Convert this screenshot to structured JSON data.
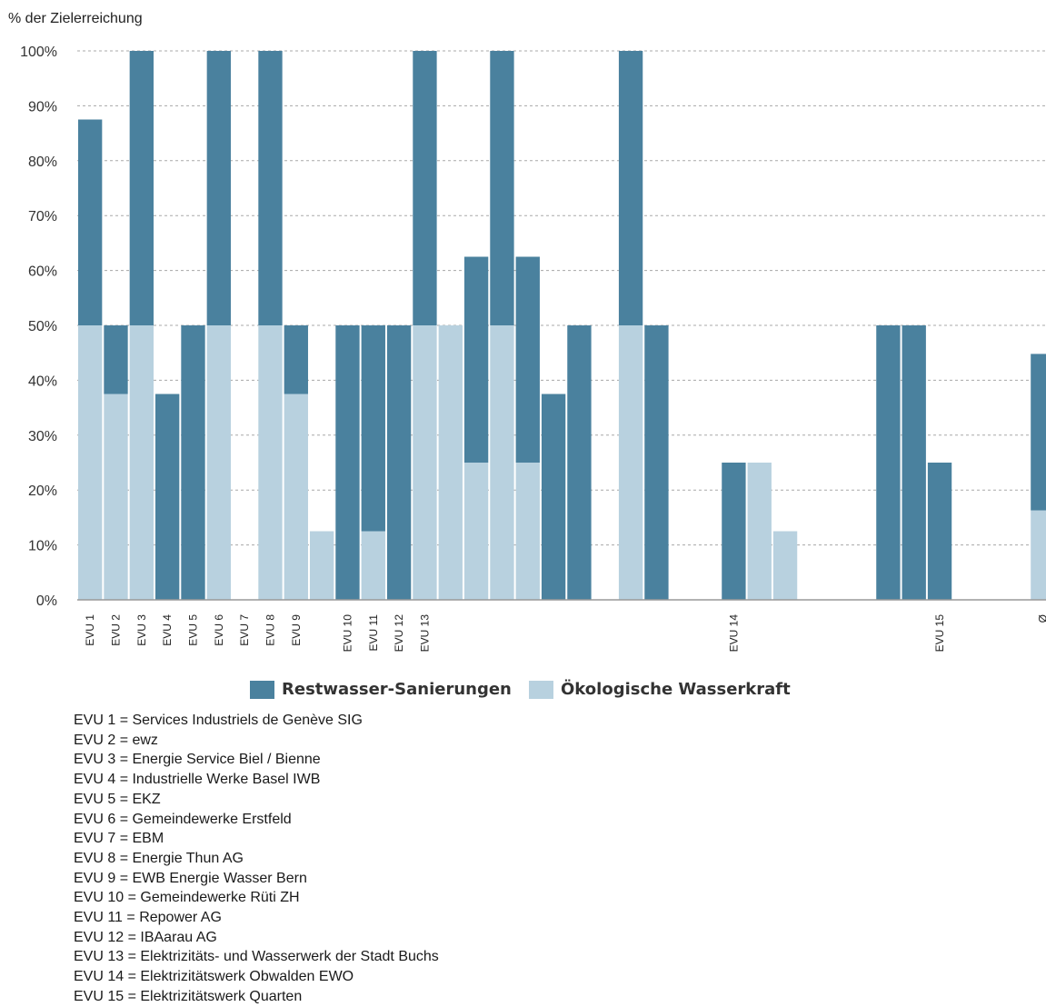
{
  "chart_data": {
    "type": "bar",
    "stacked": true,
    "ylabel": "% der Zielerreichung",
    "ylim": [
      0,
      100
    ],
    "yticks": [
      "0%",
      "10%",
      "20%",
      "30%",
      "40%",
      "50%",
      "60%",
      "70%",
      "80%",
      "90%",
      "100%"
    ],
    "grid": true,
    "legend_position": "bottom",
    "categories": [
      "EVU 1",
      "EVU 2",
      "EVU 3",
      "EVU 4",
      "EVU 5",
      "EVU 6",
      "EVU 7",
      "EVU 8",
      "EVU 9",
      "",
      "EVU 10",
      "EVU 11",
      "EVU 12",
      "EVU 13",
      "",
      "",
      "",
      "",
      "",
      "",
      "",
      "",
      "",
      "",
      "",
      "EVU 14",
      "",
      "",
      "",
      "",
      "",
      "",
      "",
      "EVU 15",
      "",
      "",
      "",
      "Ø"
    ],
    "series": [
      {
        "name": "Ökologische Wasserkraft",
        "color": "#b8d1df",
        "values": [
          50,
          37.5,
          50,
          0,
          0,
          50,
          0,
          50,
          37.5,
          12.5,
          0,
          12.5,
          0,
          50,
          50,
          25,
          50,
          25,
          0,
          0,
          0,
          50,
          0,
          0,
          0,
          0,
          25,
          12.5,
          0,
          0,
          0,
          0,
          0,
          0,
          0,
          0,
          0,
          16.3
        ]
      },
      {
        "name": "Restwasser-Sanierungen",
        "color": "#4a819e",
        "values": [
          37.5,
          12.5,
          50,
          37.5,
          50,
          50,
          0,
          50,
          12.5,
          0,
          50,
          37.5,
          50,
          50,
          0,
          37.5,
          50,
          37.5,
          37.5,
          50,
          0,
          50,
          50,
          0,
          0,
          25,
          0,
          0,
          0,
          0,
          0,
          50,
          50,
          25,
          0,
          0,
          0,
          28.5
        ]
      }
    ]
  },
  "legend": {
    "items": [
      {
        "label": "Restwasser-Sanierungen",
        "color": "#4a819e"
      },
      {
        "label": "Ökologische Wasserkraft",
        "color": "#b8d1df"
      }
    ]
  },
  "notes": [
    "EVU 1 = Services Industriels de Genève SIG",
    "EVU 2 = ewz",
    "EVU 3 = Energie Service Biel / Bienne",
    "EVU 4 = Industrielle Werke Basel IWB",
    "EVU 5 = EKZ",
    "EVU 6 = Gemeindewerke Erstfeld",
    "EVU 7 = EBM",
    "EVU 8 = Energie Thun AG",
    "EVU 9 = EWB Energie Wasser Bern",
    "EVU 10 = Gemeindewerke Rüti ZH",
    "EVU 11 = Repower AG",
    "EVU 12 = IBAarau AG",
    "EVU 13 = Elektrizitäts- und Wasserwerk der Stadt Buchs",
    "EVU 14 = Elektrizitätswerk Obwalden EWO",
    "EVU 15 = Elektrizitätswerk Quarten"
  ]
}
